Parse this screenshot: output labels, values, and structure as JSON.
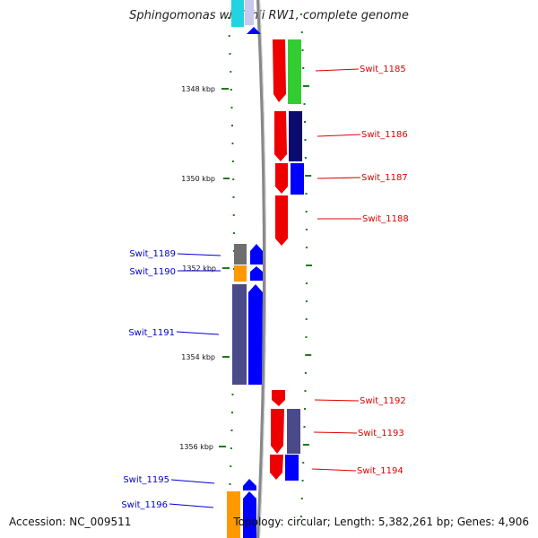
{
  "title": "Sphingomonas wittichii RW1, complete genome",
  "footer": {
    "accession": "Accession: NC_009511",
    "summary": "Topology: circular; Length: 5,382,261 bp; Genes: 4,906"
  },
  "colors": {
    "forward_label": "#e00000",
    "reverse_label": "#0000d0",
    "backbone": "#888888",
    "ticks": "#1f7a1f"
  },
  "ruler": [
    "1348 kbp",
    "1350 kbp",
    "1352 kbp",
    "1354 kbp",
    "1356 kbp"
  ],
  "genes": [
    {
      "label": "Swit_1185",
      "strand": "forward"
    },
    {
      "label": "Swit_1186",
      "strand": "forward"
    },
    {
      "label": "Swit_1187",
      "strand": "forward"
    },
    {
      "label": "Swit_1188",
      "strand": "forward"
    },
    {
      "label": "Swit_1189",
      "strand": "reverse"
    },
    {
      "label": "Swit_1190",
      "strand": "reverse"
    },
    {
      "label": "Swit_1191",
      "strand": "reverse"
    },
    {
      "label": "Swit_1192",
      "strand": "forward"
    },
    {
      "label": "Swit_1193",
      "strand": "forward"
    },
    {
      "label": "Swit_1194",
      "strand": "forward"
    },
    {
      "label": "Swit_1195",
      "strand": "reverse"
    },
    {
      "label": "Swit_1196",
      "strand": "reverse"
    }
  ]
}
